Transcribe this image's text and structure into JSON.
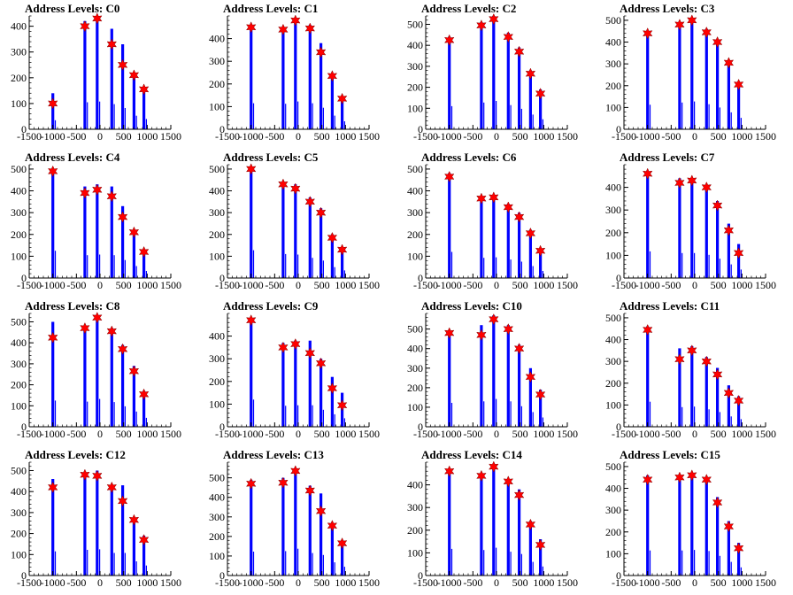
{
  "colors": {
    "bar": "#0000ff",
    "marker": "#ff0000",
    "axis": "#000000",
    "background": "#ffffff"
  },
  "chart_data": [
    {
      "type": "bar",
      "title": "Address Levels: C0",
      "xlim": [
        -1500,
        1500
      ],
      "ylim": [
        0,
        440
      ],
      "xticks": [
        -1500,
        -1000,
        -500,
        0,
        500,
        1000,
        1500
      ],
      "yticks": [
        0,
        100,
        200,
        300,
        400
      ],
      "peaks_x": [
        -1000,
        -320,
        -60,
        250,
        480,
        720,
        930
      ],
      "bars_y": [
        140,
        420,
        430,
        390,
        330,
        210,
        160
      ],
      "markers_y": [
        100,
        400,
        430,
        330,
        250,
        210,
        155
      ]
    },
    {
      "type": "bar",
      "title": "Address Levels: C1",
      "xlim": [
        -1500,
        1500
      ],
      "ylim": [
        0,
        500
      ],
      "xticks": [
        -1500,
        -1000,
        -500,
        0,
        500,
        1000,
        1500
      ],
      "yticks": [
        0,
        100,
        200,
        300,
        400
      ],
      "peaks_x": [
        -1000,
        -320,
        -60,
        250,
        480,
        720,
        930
      ],
      "bars_y": [
        460,
        450,
        490,
        460,
        380,
        240,
        140
      ],
      "markers_y": [
        450,
        440,
        480,
        445,
        340,
        235,
        135
      ]
    },
    {
      "type": "bar",
      "title": "Address Levels: C2",
      "xlim": [
        -1500,
        1500
      ],
      "ylim": [
        0,
        540
      ],
      "xticks": [
        -1500,
        -1000,
        -500,
        0,
        500,
        1000,
        1500
      ],
      "yticks": [
        0,
        100,
        200,
        300,
        400,
        500
      ],
      "peaks_x": [
        -1000,
        -320,
        -60,
        250,
        480,
        720,
        930
      ],
      "bars_y": [
        440,
        510,
        540,
        460,
        390,
        280,
        190
      ],
      "markers_y": [
        425,
        495,
        525,
        440,
        370,
        265,
        170
      ]
    },
    {
      "type": "bar",
      "title": "Address Levels: C3",
      "xlim": [
        -1500,
        1500
      ],
      "ylim": [
        0,
        520
      ],
      "xticks": [
        -1500,
        -1000,
        -500,
        0,
        500,
        1000,
        1500
      ],
      "yticks": [
        0,
        100,
        200,
        300,
        400,
        500
      ],
      "peaks_x": [
        -1000,
        -320,
        -60,
        250,
        480,
        720,
        930
      ],
      "bars_y": [
        450,
        490,
        510,
        460,
        400,
        310,
        210
      ],
      "markers_y": [
        440,
        480,
        500,
        445,
        400,
        305,
        205
      ]
    },
    {
      "type": "bar",
      "title": "Address Levels: C4",
      "xlim": [
        -1500,
        1500
      ],
      "ylim": [
        0,
        520
      ],
      "xticks": [
        -1500,
        -1000,
        -500,
        0,
        500,
        1000,
        1500
      ],
      "yticks": [
        0,
        100,
        200,
        300,
        400,
        500
      ],
      "peaks_x": [
        -1000,
        -320,
        -60,
        250,
        480,
        720,
        930
      ],
      "bars_y": [
        500,
        420,
        430,
        420,
        330,
        220,
        130
      ],
      "markers_y": [
        490,
        390,
        405,
        375,
        280,
        210,
        120
      ]
    },
    {
      "type": "bar",
      "title": "Address Levels: C5",
      "xlim": [
        -1500,
        1500
      ],
      "ylim": [
        0,
        520
      ],
      "xticks": [
        -1500,
        -1000,
        -500,
        0,
        500,
        1000,
        1500
      ],
      "yticks": [
        0,
        100,
        200,
        300,
        400,
        500
      ],
      "peaks_x": [
        -1000,
        -320,
        -60,
        250,
        480,
        720,
        930
      ],
      "bars_y": [
        510,
        440,
        430,
        370,
        320,
        200,
        140
      ],
      "markers_y": [
        500,
        430,
        410,
        350,
        300,
        185,
        130
      ]
    },
    {
      "type": "bar",
      "title": "Address Levels: C6",
      "xlim": [
        -1500,
        1500
      ],
      "ylim": [
        0,
        520
      ],
      "xticks": [
        -1500,
        -1000,
        -500,
        0,
        500,
        1000,
        1500
      ],
      "yticks": [
        0,
        100,
        200,
        300,
        400,
        500
      ],
      "peaks_x": [
        -1000,
        -320,
        -60,
        250,
        480,
        720,
        930
      ],
      "bars_y": [
        480,
        370,
        380,
        340,
        300,
        220,
        130
      ],
      "markers_y": [
        465,
        365,
        370,
        325,
        280,
        205,
        125
      ]
    },
    {
      "type": "bar",
      "title": "Address Levels: C7",
      "xlim": [
        -1500,
        1500
      ],
      "ylim": [
        0,
        500
      ],
      "xticks": [
        -1500,
        -1000,
        -500,
        0,
        500,
        1000,
        1500
      ],
      "yticks": [
        0,
        100,
        200,
        300,
        400
      ],
      "peaks_x": [
        -1000,
        -320,
        -60,
        250,
        480,
        720,
        930
      ],
      "bars_y": [
        470,
        440,
        440,
        410,
        340,
        240,
        150
      ],
      "markers_y": [
        460,
        420,
        430,
        400,
        320,
        210,
        110
      ]
    },
    {
      "type": "bar",
      "title": "Address Levels: C8",
      "xlim": [
        -1500,
        1500
      ],
      "ylim": [
        0,
        540
      ],
      "xticks": [
        -1500,
        -1000,
        -500,
        0,
        500,
        1000,
        1500
      ],
      "yticks": [
        0,
        100,
        200,
        300,
        400,
        500
      ],
      "peaks_x": [
        -1000,
        -320,
        -60,
        250,
        480,
        720,
        930
      ],
      "bars_y": [
        500,
        480,
        530,
        470,
        390,
        290,
        170
      ],
      "markers_y": [
        425,
        470,
        520,
        455,
        370,
        265,
        155
      ]
    },
    {
      "type": "bar",
      "title": "Address Levels: C9",
      "xlim": [
        -1500,
        1500
      ],
      "ylim": [
        0,
        500
      ],
      "xticks": [
        -1500,
        -1000,
        -500,
        0,
        500,
        1000,
        1500
      ],
      "yticks": [
        0,
        100,
        200,
        300,
        400
      ],
      "peaks_x": [
        -1000,
        -320,
        -60,
        250,
        480,
        720,
        930
      ],
      "bars_y": [
        480,
        370,
        380,
        380,
        300,
        220,
        150
      ],
      "markers_y": [
        470,
        350,
        365,
        325,
        280,
        170,
        95
      ]
    },
    {
      "type": "bar",
      "title": "Address Levels: C10",
      "xlim": [
        -1500,
        1500
      ],
      "ylim": [
        0,
        580
      ],
      "xticks": [
        -1500,
        -1000,
        -500,
        0,
        500,
        1000,
        1500
      ],
      "yticks": [
        0,
        100,
        200,
        300,
        400,
        500
      ],
      "peaks_x": [
        -1000,
        -320,
        -60,
        250,
        480,
        720,
        930
      ],
      "bars_y": [
        490,
        520,
        570,
        520,
        420,
        300,
        190
      ],
      "markers_y": [
        480,
        470,
        550,
        500,
        400,
        255,
        165
      ]
    },
    {
      "type": "bar",
      "title": "Address Levels: C11",
      "xlim": [
        -1500,
        1500
      ],
      "ylim": [
        0,
        520
      ],
      "xticks": [
        -1500,
        -1000,
        -500,
        0,
        500,
        1000,
        1500
      ],
      "yticks": [
        0,
        100,
        200,
        300,
        400,
        500
      ],
      "peaks_x": [
        -1000,
        -320,
        -60,
        250,
        480,
        720,
        930
      ],
      "bars_y": [
        460,
        360,
        370,
        320,
        270,
        190,
        140
      ],
      "markers_y": [
        445,
        310,
        350,
        300,
        240,
        155,
        120
      ]
    },
    {
      "type": "bar",
      "title": "Address Levels: C12",
      "xlim": [
        -1500,
        1500
      ],
      "ylim": [
        0,
        540
      ],
      "xticks": [
        -1500,
        -1000,
        -500,
        0,
        500,
        1000,
        1500
      ],
      "yticks": [
        0,
        100,
        200,
        300,
        400,
        500
      ],
      "peaks_x": [
        -1000,
        -320,
        -60,
        250,
        480,
        720,
        930
      ],
      "bars_y": [
        460,
        490,
        500,
        430,
        430,
        270,
        190
      ],
      "markers_y": [
        420,
        480,
        475,
        420,
        355,
        265,
        170
      ]
    },
    {
      "type": "bar",
      "title": "Address Levels: C13",
      "xlim": [
        -1500,
        1500
      ],
      "ylim": [
        0,
        580
      ],
      "xticks": [
        -1500,
        -1000,
        -500,
        0,
        500,
        1000,
        1500
      ],
      "yticks": [
        0,
        100,
        200,
        300,
        400,
        500
      ],
      "peaks_x": [
        -1000,
        -320,
        -60,
        250,
        480,
        720,
        930
      ],
      "bars_y": [
        490,
        500,
        550,
        460,
        420,
        270,
        180
      ],
      "markers_y": [
        470,
        475,
        535,
        435,
        330,
        255,
        165
      ]
    },
    {
      "type": "bar",
      "title": "Address Levels: C14",
      "xlim": [
        -1500,
        1500
      ],
      "ylim": [
        0,
        500
      ],
      "xticks": [
        -1500,
        -1000,
        -500,
        0,
        500,
        1000,
        1500
      ],
      "yticks": [
        0,
        100,
        200,
        300,
        400
      ],
      "peaks_x": [
        -1000,
        -320,
        -60,
        250,
        480,
        720,
        930
      ],
      "bars_y": [
        470,
        450,
        490,
        420,
        380,
        240,
        160
      ],
      "markers_y": [
        460,
        440,
        480,
        415,
        355,
        225,
        135
      ]
    },
    {
      "type": "bar",
      "title": "Address Levels: C15",
      "xlim": [
        -1500,
        1500
      ],
      "ylim": [
        0,
        520
      ],
      "xticks": [
        -1500,
        -1000,
        -500,
        0,
        500,
        1000,
        1500
      ],
      "yticks": [
        0,
        100,
        200,
        300,
        400,
        500
      ],
      "peaks_x": [
        -1000,
        -320,
        -60,
        250,
        480,
        720,
        930
      ],
      "bars_y": [
        460,
        460,
        470,
        450,
        360,
        250,
        150
      ],
      "markers_y": [
        440,
        450,
        460,
        440,
        335,
        225,
        125
      ]
    }
  ]
}
